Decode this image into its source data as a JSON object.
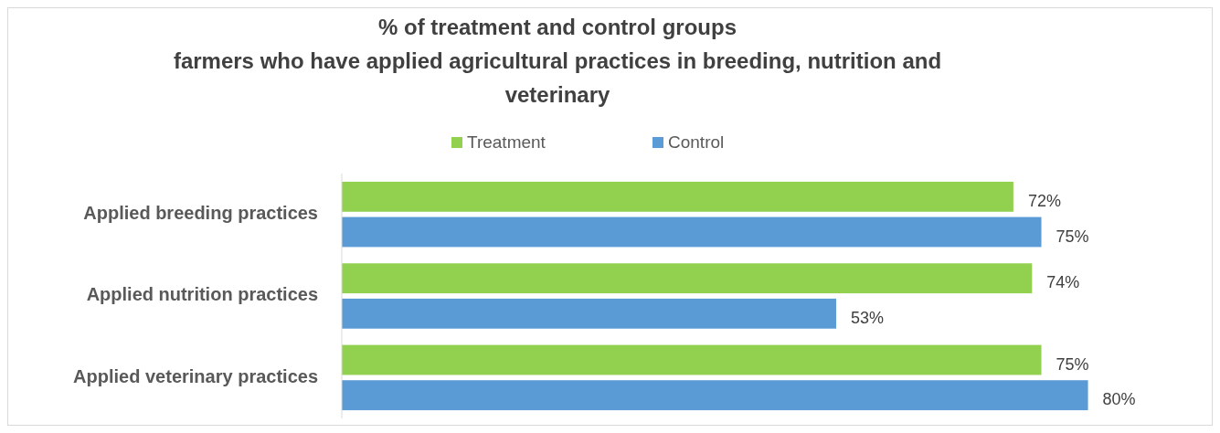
{
  "chart_data": {
    "type": "bar",
    "orientation": "horizontal",
    "title": "% of treatment and control groups",
    "subtitle": "farmers who have applied agricultural practices in breeding, nutrition and veterinary",
    "categories": [
      "Applied breeding practices",
      "Applied nutrition practices",
      "Applied veterinary practices"
    ],
    "series": [
      {
        "name": "Treatment",
        "color": "#92d050",
        "values": [
          72,
          74,
          75
        ],
        "value_labels": [
          "72%",
          "74%",
          "75%"
        ]
      },
      {
        "name": "Control",
        "color": "#5b9bd5",
        "values": [
          75,
          53,
          80
        ],
        "value_labels": [
          "75%",
          "53%",
          "80%"
        ]
      }
    ],
    "legend": "top"
  }
}
